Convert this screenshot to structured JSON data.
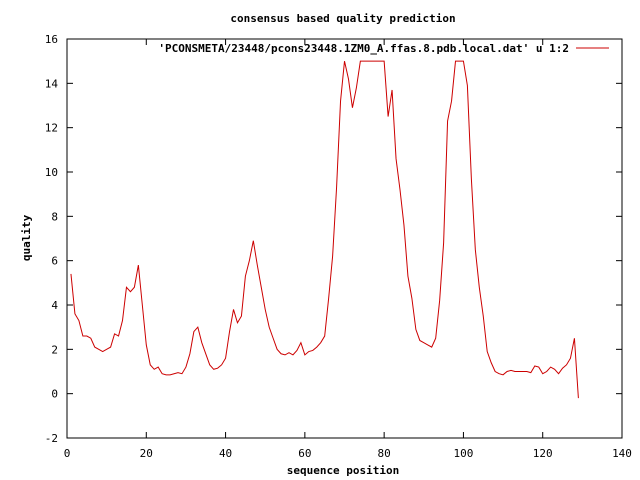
{
  "chart_data": {
    "type": "line",
    "title": "consensus based quality prediction",
    "xlabel": "sequence position",
    "ylabel": "quality",
    "xlim": [
      0,
      140
    ],
    "ylim": [
      -2,
      16
    ],
    "xticks": [
      0,
      20,
      40,
      60,
      80,
      100,
      120,
      140
    ],
    "yticks": [
      -2,
      0,
      2,
      4,
      6,
      8,
      10,
      12,
      14,
      16
    ],
    "grid": false,
    "legend_position": "top-right",
    "series": [
      {
        "name": "'PCONSMETA/23448/pcons23448.1ZM0_A.ffas.8.pdb.local.dat' u 1:2",
        "color": "#cc0000",
        "x": [
          1,
          2,
          3,
          4,
          5,
          6,
          7,
          8,
          9,
          10,
          11,
          12,
          13,
          14,
          15,
          16,
          17,
          18,
          19,
          20,
          21,
          22,
          23,
          24,
          25,
          26,
          27,
          28,
          29,
          30,
          31,
          32,
          33,
          34,
          35,
          36,
          37,
          38,
          39,
          40,
          41,
          42,
          43,
          44,
          45,
          46,
          47,
          48,
          49,
          50,
          51,
          52,
          53,
          54,
          55,
          56,
          57,
          58,
          59,
          60,
          61,
          62,
          63,
          64,
          65,
          66,
          67,
          68,
          69,
          70,
          71,
          72,
          73,
          74,
          75,
          76,
          77,
          78,
          79,
          80,
          81,
          82,
          83,
          84,
          85,
          86,
          87,
          88,
          89,
          90,
          91,
          92,
          93,
          94,
          95,
          96,
          97,
          98,
          99,
          100,
          101,
          102,
          103,
          104,
          105,
          106,
          107,
          108,
          109,
          110,
          111,
          112,
          113,
          114,
          115,
          116,
          117,
          118,
          119,
          120,
          121,
          122,
          123,
          124,
          125,
          126,
          127,
          128,
          129
        ],
        "y": [
          5.4,
          3.6,
          3.3,
          2.6,
          2.6,
          2.5,
          2.1,
          2.0,
          1.9,
          2.0,
          2.1,
          2.7,
          2.6,
          3.3,
          4.8,
          4.6,
          4.8,
          5.8,
          4.0,
          2.2,
          1.3,
          1.1,
          1.2,
          0.9,
          0.85,
          0.85,
          0.9,
          0.95,
          0.9,
          1.2,
          1.8,
          2.8,
          3.0,
          2.3,
          1.8,
          1.3,
          1.1,
          1.15,
          1.3,
          1.6,
          2.8,
          3.8,
          3.2,
          3.5,
          5.3,
          6.0,
          6.9,
          5.8,
          4.8,
          3.8,
          3.0,
          2.5,
          2.0,
          1.8,
          1.75,
          1.85,
          1.75,
          1.95,
          2.3,
          1.75,
          1.9,
          1.95,
          2.1,
          2.3,
          2.6,
          4.3,
          6.2,
          9.3,
          13.2,
          15.0,
          14.2,
          12.9,
          13.8,
          15.0,
          15.0,
          15.0,
          15.0,
          15.0,
          15.0,
          15.0,
          12.5,
          13.7,
          10.6,
          9.2,
          7.6,
          5.3,
          4.3,
          2.9,
          2.4,
          2.3,
          2.2,
          2.1,
          2.5,
          4.2,
          6.8,
          12.3,
          13.2,
          15.0,
          15.0,
          15.0,
          13.9,
          9.7,
          6.5,
          4.8,
          3.5,
          1.9,
          1.4,
          1.0,
          0.9,
          0.85,
          1.0,
          1.05,
          1.0,
          1.0,
          1.0,
          1.0,
          0.95,
          1.25,
          1.2,
          0.9,
          1.0,
          1.2,
          1.1,
          0.9,
          1.15,
          1.3,
          1.6,
          2.5,
          -0.2
        ]
      }
    ]
  }
}
